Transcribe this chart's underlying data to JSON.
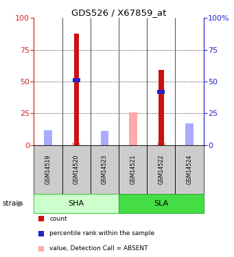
{
  "title": "GDS526 / X67859_at",
  "samples": [
    "GSM14519",
    "GSM14520",
    "GSM14523",
    "GSM14521",
    "GSM14522",
    "GSM14524"
  ],
  "groups": [
    {
      "name": "SHA",
      "indices": [
        0,
        1,
        2
      ],
      "color": "#ccffcc",
      "border_color": "#44cc44"
    },
    {
      "name": "SLA",
      "indices": [
        3,
        4,
        5
      ],
      "color": "#44dd44",
      "border_color": "#33aa33"
    }
  ],
  "count_values": [
    0,
    88,
    0,
    0,
    59,
    0
  ],
  "percentile_values": [
    0,
    51,
    0,
    0,
    42,
    0
  ],
  "absent_value_values": [
    5,
    2,
    8,
    26,
    2,
    12
  ],
  "absent_rank_values": [
    12,
    0,
    11,
    0,
    0,
    17
  ],
  "ylim": [
    0,
    100
  ],
  "count_color": "#cc1111",
  "percentile_color": "#2222cc",
  "absent_value_color": "#ffaaaa",
  "absent_rank_color": "#aaaaff",
  "left_axis_color": "#cc2222",
  "right_axis_color": "#2222cc",
  "background_color": "#ffffff",
  "plot_bg": "#ffffff",
  "sample_bg": "#cccccc",
  "legend_items": [
    {
      "color": "#cc1111",
      "label": "count"
    },
    {
      "color": "#2222cc",
      "label": "percentile rank within the sample"
    },
    {
      "color": "#ffaaaa",
      "label": "value, Detection Call = ABSENT"
    },
    {
      "color": "#aaaaff",
      "label": "rank, Detection Call = ABSENT"
    }
  ]
}
